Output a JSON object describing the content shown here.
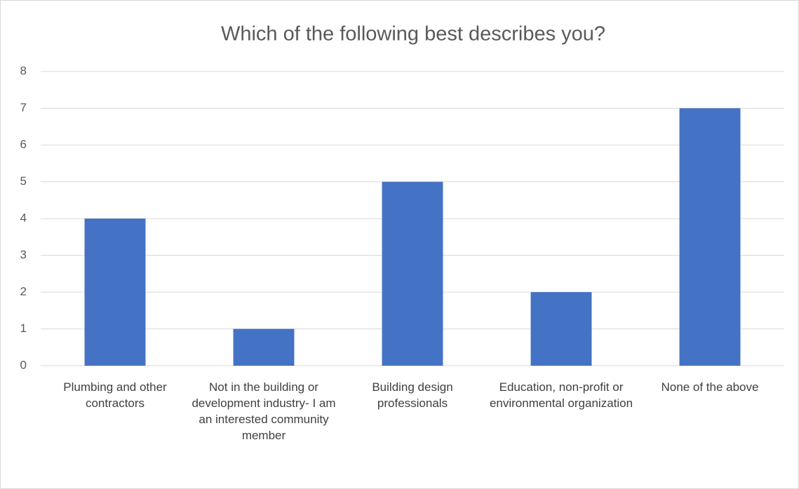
{
  "chart_data": {
    "type": "bar",
    "title": "Which of the following best describes you?",
    "categories": [
      "Plumbing and other contractors",
      "Not in the building or development industry- I am an interested community member",
      "Building design professionals",
      "Education, non-profit or environmental organization",
      "None of the above"
    ],
    "values": [
      4,
      1,
      5,
      2,
      7
    ],
    "color": "#4472c4",
    "ylim": [
      0,
      8
    ],
    "yticks": [
      0,
      1,
      2,
      3,
      4,
      5,
      6,
      7,
      8
    ],
    "grid": true
  }
}
